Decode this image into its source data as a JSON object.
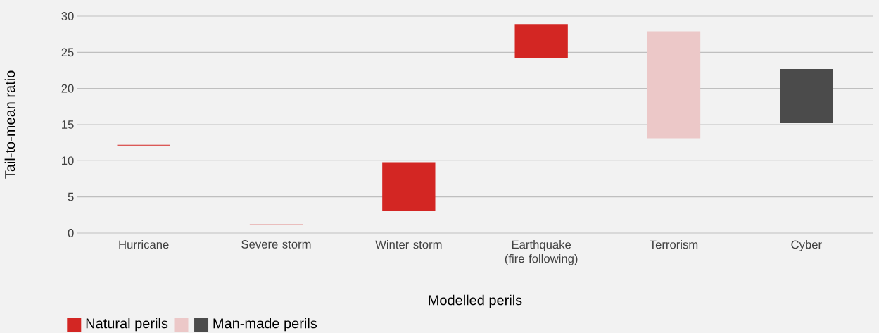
{
  "chart_data": {
    "type": "bar",
    "xlabel": "Modelled perils",
    "ylabel": "Tail-to-mean ratio",
    "categories": [
      "Hurricane",
      "Severe storm",
      "Winter storm",
      "Earthquake (fire following)",
      "Terrorism",
      "Cyber"
    ],
    "series": [
      {
        "name": "Natural perils",
        "color": "#d32623",
        "values": [
          0.1,
          0.1,
          6.7,
          4.7,
          null,
          null
        ],
        "base": [
          12.1,
          1.1,
          3.1,
          24.2,
          null,
          null
        ]
      },
      {
        "color": "#ecc8c8",
        "values": [
          null,
          null,
          null,
          null,
          14.8,
          null
        ],
        "base": [
          null,
          null,
          null,
          null,
          13.1,
          null
        ]
      },
      {
        "name": "Man-made perils",
        "color": "#4b4b4b",
        "values": [
          null,
          null,
          null,
          null,
          null,
          7.5
        ],
        "base": [
          null,
          null,
          null,
          null,
          null,
          15.2
        ]
      }
    ],
    "ylim": [
      0,
      30
    ],
    "yticks": [
      0,
      5,
      10,
      15,
      20,
      25,
      30
    ],
    "grid": "y",
    "legend": "bottom"
  }
}
